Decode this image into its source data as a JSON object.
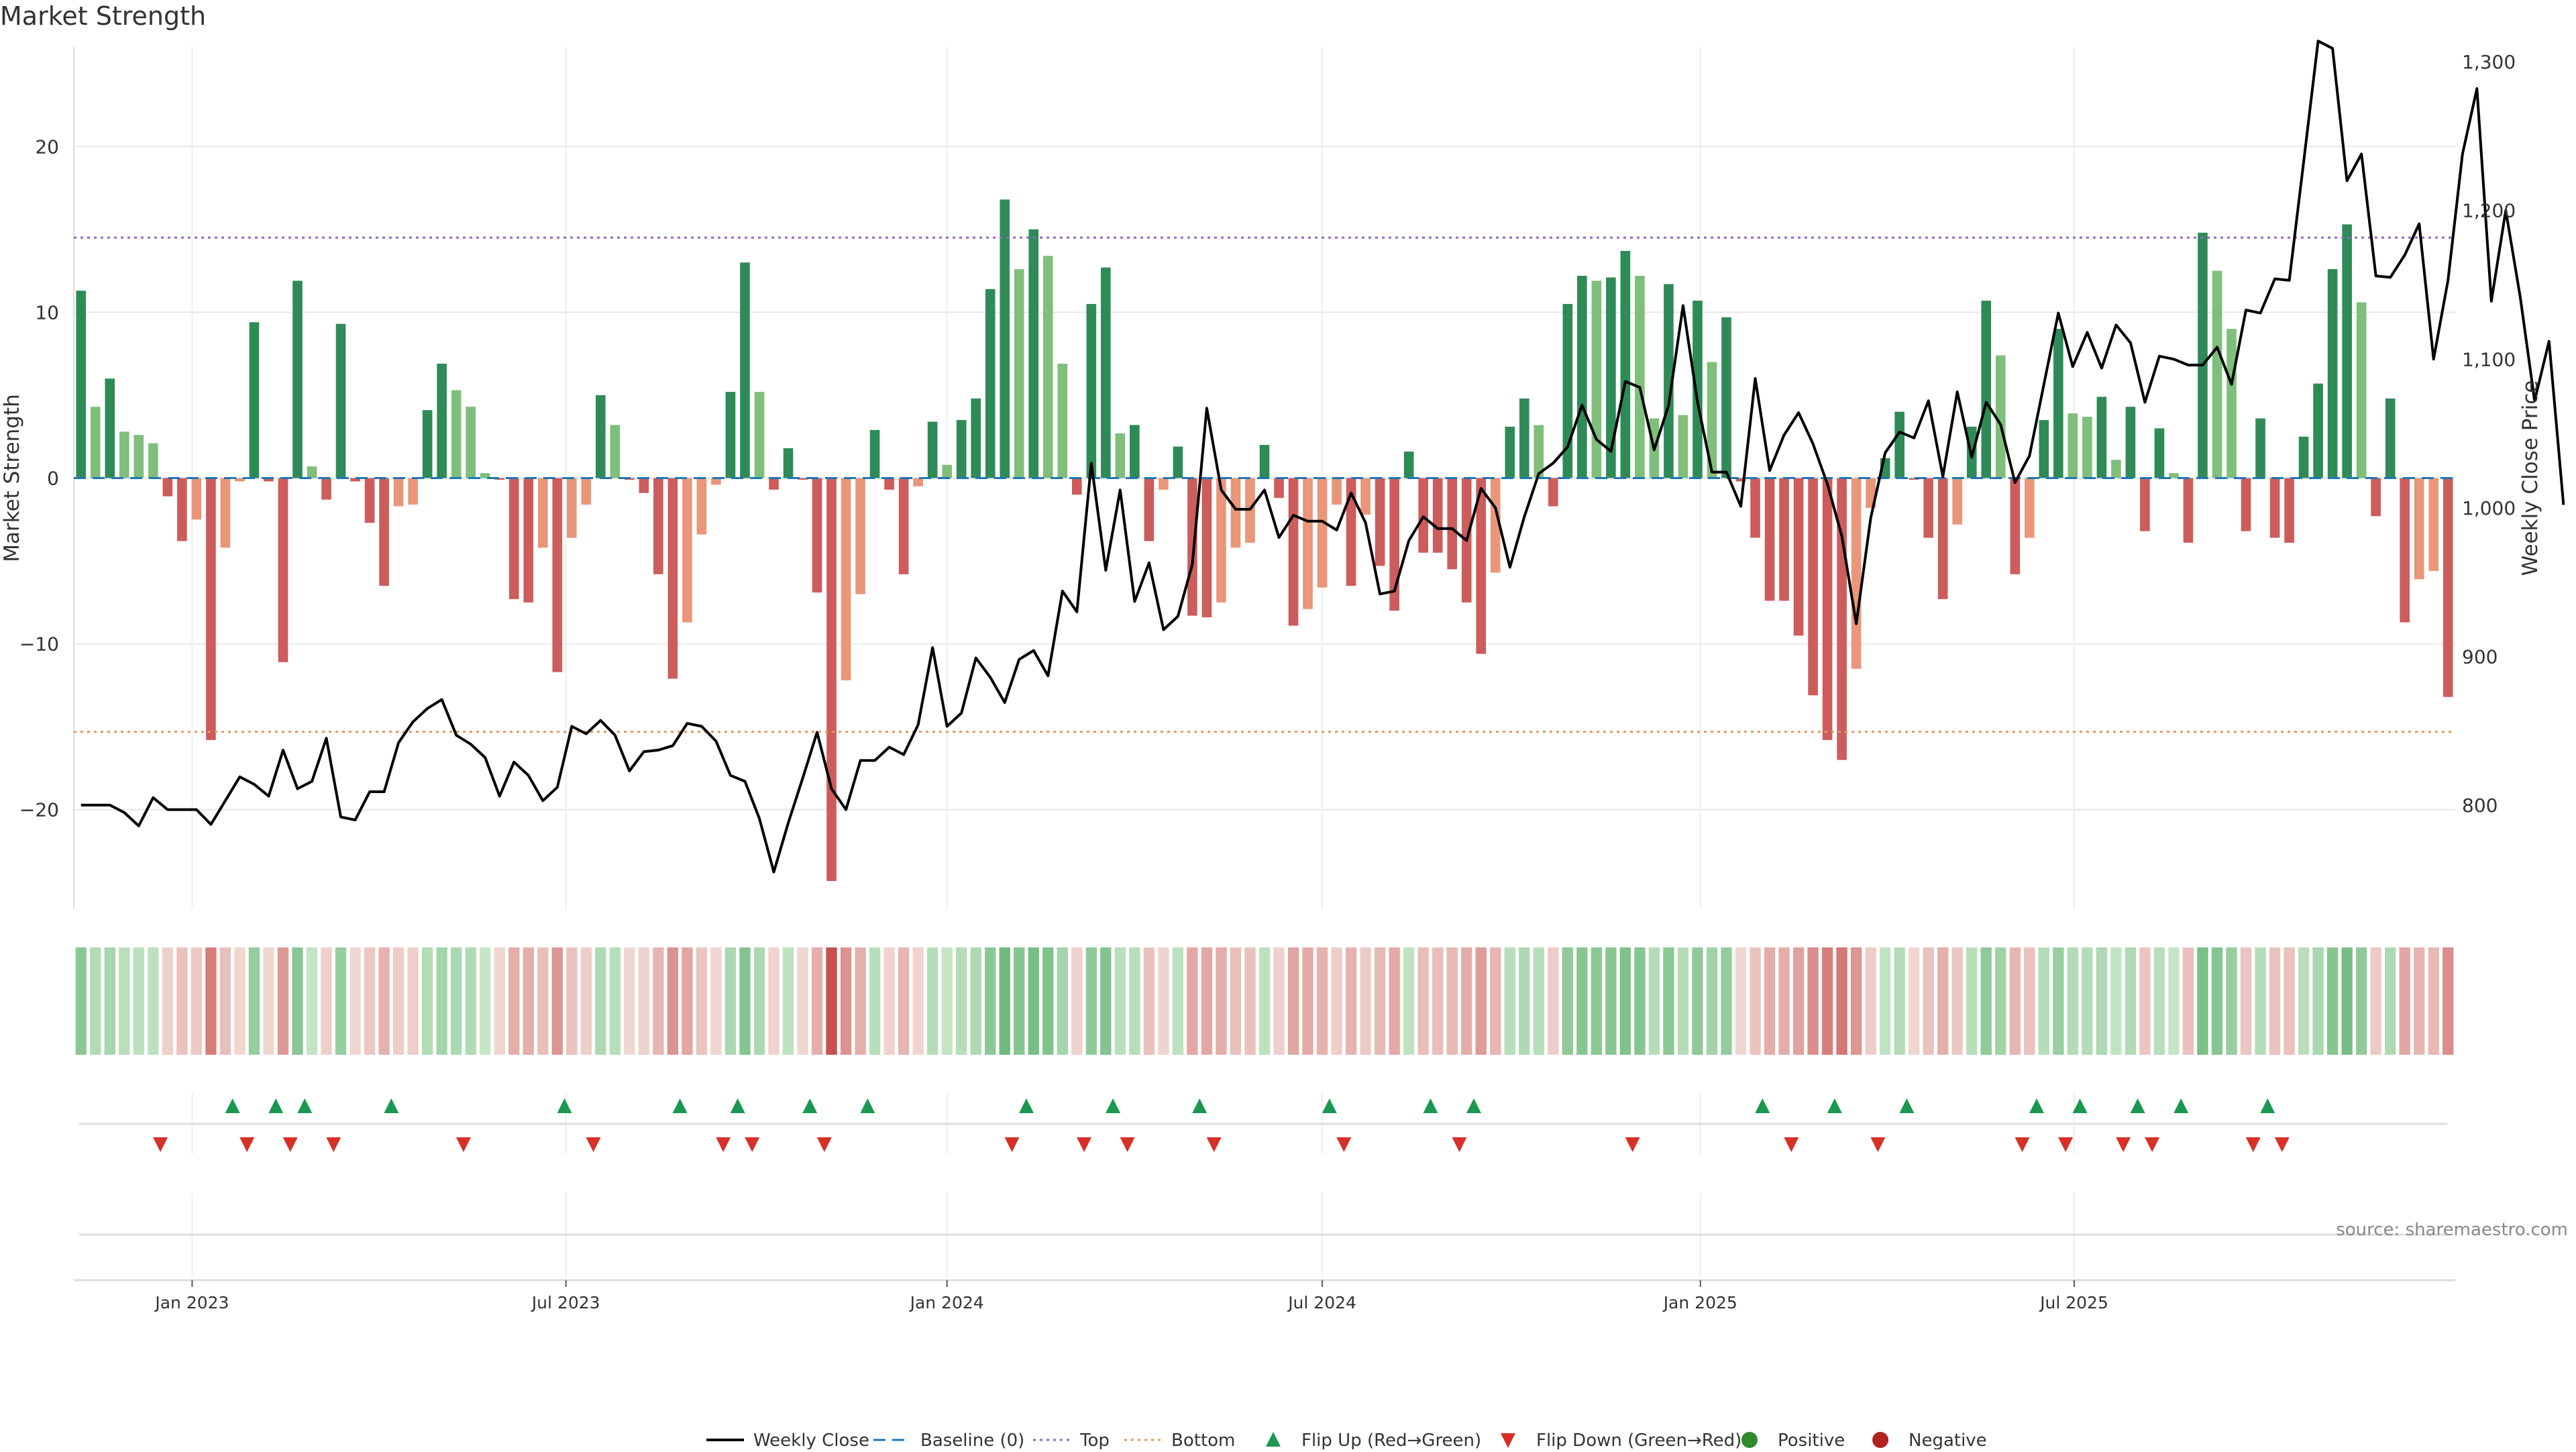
{
  "title": "Market Strength",
  "source": "source: sharemaestro.com",
  "chart_data": {
    "type": "bar",
    "title": "Market Strength",
    "ylabel": "Market Strength",
    "y2label": "Weekly Close Price",
    "ylim": [
      -26,
      26
    ],
    "y2lim": [
      730,
      1310
    ],
    "yticks": [
      {
        "value": 20,
        "label": "20"
      },
      {
        "value": 10,
        "label": "10"
      },
      {
        "value": 0,
        "label": "0"
      },
      {
        "value": -10,
        "label": "−10"
      },
      {
        "value": -20,
        "label": "−20"
      }
    ],
    "y2ticks": [
      {
        "value": 1300,
        "label": "1,300"
      },
      {
        "value": 1200,
        "label": "1,200"
      },
      {
        "value": 1100,
        "label": "1,100"
      },
      {
        "value": 1000,
        "label": "1,000"
      },
      {
        "value": 900,
        "label": "900"
      },
      {
        "value": 800,
        "label": "800"
      }
    ],
    "xticks": [
      {
        "label": "Jan 2023",
        "week": 8.2
      },
      {
        "label": "Jul 2023",
        "week": 34.1
      },
      {
        "label": "Jan 2024",
        "week": 60.5
      },
      {
        "label": "Jul 2024",
        "week": 86.5
      },
      {
        "label": "Jan 2025",
        "week": 112.7
      },
      {
        "label": "Jul 2025",
        "week": 138.6
      }
    ],
    "top_threshold": 14.5,
    "bottom_threshold": -15.3,
    "grid": true,
    "legend_position": "bottom-center",
    "legend": [
      {
        "key": "weekly_close",
        "label": "Weekly Close",
        "color": "#000000",
        "style": "line"
      },
      {
        "key": "baseline",
        "label": "Baseline (0)",
        "color": "#1f77b4",
        "style": "dash"
      },
      {
        "key": "top",
        "label": "Top",
        "color": "#9467bd",
        "style": "dot"
      },
      {
        "key": "bottom",
        "label": "Bottom",
        "color": "#e39a61",
        "style": "dot"
      },
      {
        "key": "flip_up",
        "label": "Flip Up (Red→Green)",
        "color": "#1a9850",
        "style": "triangle-up"
      },
      {
        "key": "flip_down",
        "label": "Flip Down (Green→Red)",
        "color": "#d73027",
        "style": "triangle-down"
      },
      {
        "key": "positive",
        "label": "Positive",
        "color": "#2d8a2d",
        "style": "circle"
      },
      {
        "key": "negative",
        "label": "Negative",
        "color": "#b22222",
        "style": "circle"
      }
    ],
    "colors": {
      "strong_green": "#2e8b57",
      "light_green": "#7fbf7b",
      "strong_red": "#cd5c5c",
      "light_red": "#e9967a",
      "baseline": "#1f77b4",
      "top": "#9467bd",
      "bottom": "#e39a61",
      "price_line": "#000000"
    },
    "strength": [
      11.3,
      4.3,
      6.0,
      2.8,
      2.6,
      2.1,
      -1.1,
      -3.8,
      -2.5,
      -15.8,
      -4.2,
      -0.2,
      9.4,
      -0.2,
      -11.1,
      11.9,
      0.7,
      -1.3,
      9.3,
      -0.2,
      -2.7,
      -6.5,
      -1.7,
      -1.6,
      4.1,
      6.9,
      5.3,
      4.3,
      0.3,
      -0.1,
      -7.3,
      -7.5,
      -4.2,
      -11.7,
      -3.6,
      -1.6,
      5.0,
      3.2,
      -0.1,
      -0.9,
      -5.8,
      -12.1,
      -8.7,
      -3.4,
      -0.4,
      5.2,
      13.0,
      5.2,
      -0.7,
      1.8,
      -0.1,
      -6.9,
      -24.3,
      -12.2,
      -7.0,
      2.9,
      -0.7,
      -5.8,
      -0.5,
      3.4,
      0.8,
      3.5,
      4.8,
      11.4,
      16.8,
      12.6,
      15.0,
      13.4,
      6.9,
      -1.0,
      10.5,
      12.7,
      2.7,
      3.2,
      -3.8,
      -0.7,
      1.9,
      -8.3,
      -8.4,
      -7.5,
      -4.2,
      -3.9,
      2.0,
      -1.2,
      -8.9,
      -7.9,
      -6.6,
      -1.6,
      -6.5,
      -2.2,
      -5.3,
      -8.0,
      1.6,
      -4.5,
      -4.5,
      -5.5,
      -7.5,
      -10.6,
      -5.7,
      3.1,
      4.8,
      3.2,
      -1.7,
      10.5,
      12.2,
      11.9,
      12.1,
      13.7,
      12.2,
      3.6,
      11.7,
      3.8,
      10.7,
      7.0,
      9.7,
      -0.2,
      -3.6,
      -7.4,
      -7.4,
      -9.5,
      -13.1,
      -15.8,
      -17.0,
      -11.5,
      -1.8,
      1.2,
      4.0,
      -0.1,
      -3.6,
      -7.3,
      -2.8,
      3.1,
      10.7,
      7.4,
      -5.8,
      -3.6,
      3.5,
      9.0,
      3.9,
      3.7,
      4.9,
      1.1,
      4.3,
      -3.2,
      3.0,
      0.3,
      -3.9,
      14.8,
      12.5,
      9.0,
      -3.2,
      3.6,
      -3.6,
      -3.9,
      2.5,
      5.7,
      12.6,
      15.3,
      10.6,
      -2.3,
      4.8,
      -8.7,
      -6.1,
      -5.6,
      -13.2
    ],
    "weekly_close": [
      800,
      800,
      800,
      795,
      786,
      805,
      797,
      797,
      797,
      787,
      803,
      819,
      814,
      806,
      837,
      811,
      816,
      845,
      792,
      790,
      809,
      809,
      842,
      856,
      865,
      871,
      847,
      841,
      832,
      806,
      829,
      820,
      803,
      812,
      853,
      848,
      857,
      847,
      823,
      836,
      837,
      840,
      855,
      853,
      843,
      820,
      816,
      791,
      755,
      788,
      818,
      849,
      811,
      797,
      830,
      830,
      839,
      834,
      854,
      906,
      853,
      862,
      899,
      886,
      869,
      898,
      904,
      887,
      944,
      930,
      1030,
      958,
      1012,
      937,
      963,
      918,
      927,
      962,
      1067,
      1012,
      999,
      999,
      1012,
      980,
      995,
      991,
      991,
      985,
      1010,
      990,
      942,
      944,
      978,
      994,
      986,
      986,
      978,
      1013,
      1000,
      960,
      994,
      1023,
      1030,
      1041,
      1069,
      1046,
      1038,
      1085,
      1081,
      1039,
      1069,
      1136,
      1071,
      1024,
      1024,
      1001,
      1087,
      1025,
      1049,
      1064,
      1043,
      1016,
      981,
      922,
      993,
      1037,
      1051,
      1047,
      1072,
      1021,
      1078,
      1034,
      1071,
      1056,
      1017,
      1035,
      1083,
      1131,
      1095,
      1118,
      1094,
      1123,
      1111,
      1071,
      1102,
      1100,
      1096,
      1096,
      1108,
      1083,
      1133,
      1131,
      1154,
      1153,
      1233,
      1314,
      1309,
      1220,
      1238,
      1156,
      1155,
      1170,
      1191,
      1100,
      1153,
      1238,
      1282,
      1139,
      1200,
      1142,
      1072,
      1112,
      1002
    ],
    "flip_up_weeks": [
      11,
      14,
      16,
      22,
      34,
      42,
      46,
      51,
      55,
      66,
      72,
      78,
      87,
      94,
      97,
      117,
      122,
      127,
      136,
      139,
      143,
      146,
      152
    ],
    "flip_down_weeks": [
      6,
      12,
      15,
      18,
      27,
      36,
      45,
      47,
      52,
      65,
      70,
      73,
      79,
      88,
      96,
      108,
      119,
      125,
      135,
      138,
      142,
      144,
      151,
      153
    ]
  },
  "labels": {
    "positive": "Positive",
    "negative": "Negative"
  }
}
